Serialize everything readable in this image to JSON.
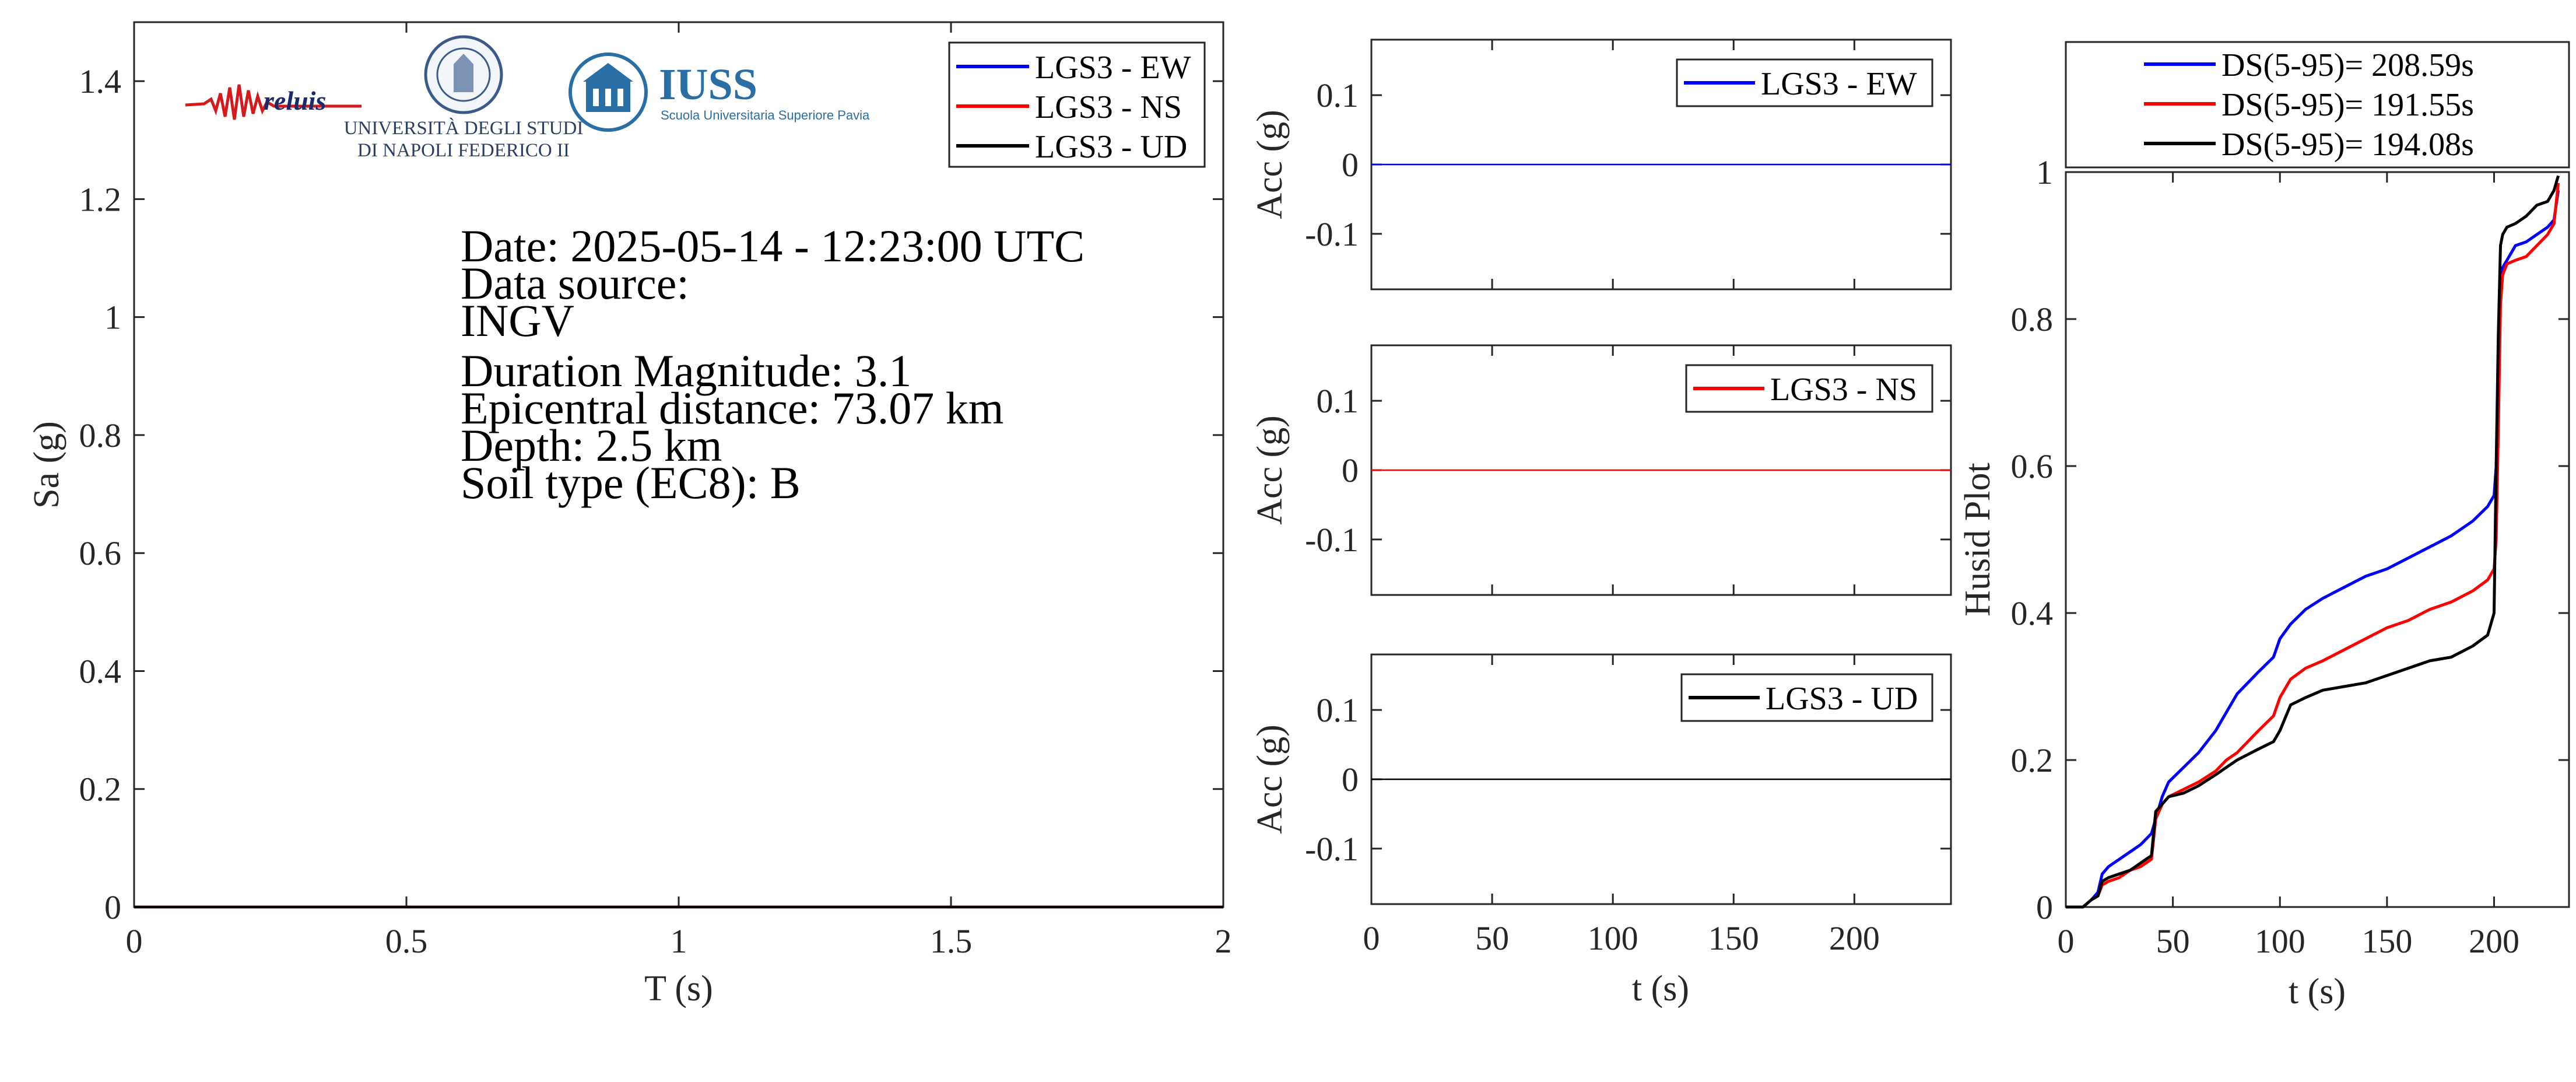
{
  "figure": {
    "logos": {
      "reluis": "reluis",
      "unina_line1": "UNIVERSITÀ DEGLI STUDI",
      "unina_line2": "DI NAPOLI FEDERICO II",
      "iuss_title": "IUSS",
      "iuss_sub": "Scuola Universitaria Superiore Pavia"
    },
    "info": {
      "date": "Date: 2025-05-14 - 12:23:00 UTC",
      "data_source_label": "Data source:",
      "data_source": "INGV",
      "magnitude": "Duration Magnitude: 3.1",
      "epicentral": "Epicentral distance: 73.07 km",
      "depth": "Depth: 2.5 km",
      "soil": "Soil type (EC8): B"
    },
    "colors": {
      "ew": "#0000ff",
      "ns": "#ff0000",
      "ud": "#000000",
      "axis": "#262626"
    }
  },
  "chart_data": [
    {
      "type": "line",
      "xlabel": "T (s)",
      "ylabel": "Sa (g)",
      "xlim": [
        0,
        2
      ],
      "ylim": [
        0,
        1.5
      ],
      "xticks": [
        "0",
        "0.5",
        "1",
        "1.5",
        "2"
      ],
      "yticks": [
        "0",
        "0.2",
        "0.4",
        "0.6",
        "0.8",
        "1",
        "1.2",
        "1.4"
      ],
      "legend_position": "top-right",
      "series": [
        {
          "name": "LGS3 - EW",
          "color": "#0000ff",
          "x": [
            0,
            2
          ],
          "y": [
            0,
            0
          ]
        },
        {
          "name": "LGS3 - NS",
          "color": "#ff0000",
          "x": [
            0,
            2
          ],
          "y": [
            0,
            0
          ]
        },
        {
          "name": "LGS3 - UD",
          "color": "#000000",
          "x": [
            0,
            2
          ],
          "y": [
            0,
            0
          ]
        }
      ]
    },
    {
      "type": "line",
      "xlabel": "",
      "ylabel": "Acc (g)",
      "xlim": [
        0,
        240
      ],
      "ylim": [
        -0.18,
        0.18
      ],
      "yticks": [
        "0.1",
        "0",
        "-0.1"
      ],
      "legend_position": "top-right",
      "series": [
        {
          "name": "LGS3 - EW",
          "color": "#0000ff",
          "x": [
            0,
            240
          ],
          "y": [
            0,
            0
          ]
        }
      ]
    },
    {
      "type": "line",
      "xlabel": "",
      "ylabel": "Acc (g)",
      "xlim": [
        0,
        240
      ],
      "ylim": [
        -0.18,
        0.18
      ],
      "yticks": [
        "0.1",
        "0",
        "-0.1"
      ],
      "legend_position": "top-right",
      "series": [
        {
          "name": "LGS3 - NS",
          "color": "#ff0000",
          "x": [
            0,
            240
          ],
          "y": [
            0,
            0
          ]
        }
      ]
    },
    {
      "type": "line",
      "xlabel": "t (s)",
      "ylabel": "Acc (g)",
      "xlim": [
        0,
        240
      ],
      "ylim": [
        -0.18,
        0.18
      ],
      "xticks": [
        "0",
        "50",
        "100",
        "150",
        "200"
      ],
      "yticks": [
        "0.1",
        "0",
        "-0.1"
      ],
      "legend_position": "top-right",
      "series": [
        {
          "name": "LGS3 - UD",
          "color": "#000000",
          "x": [
            0,
            240
          ],
          "y": [
            0,
            0
          ]
        }
      ]
    },
    {
      "type": "line",
      "xlabel": "t (s)",
      "ylabel": "Husid Plot",
      "xlim": [
        0,
        235
      ],
      "ylim": [
        0,
        1
      ],
      "xticks": [
        "0",
        "50",
        "100",
        "150",
        "200"
      ],
      "yticks": [
        "0",
        "0.2",
        "0.4",
        "0.6",
        "0.8",
        "1"
      ],
      "legend_position": "top-outside",
      "series": [
        {
          "name": "DS(5-95)= 208.59s",
          "color": "#0000ff",
          "x": [
            0,
            8,
            12,
            15,
            17,
            20,
            25,
            30,
            35,
            40,
            42,
            45,
            48,
            55,
            62,
            70,
            75,
            80,
            90,
            97,
            100,
            105,
            112,
            120,
            130,
            140,
            150,
            160,
            170,
            180,
            190,
            197,
            200,
            201,
            202,
            203,
            204,
            206,
            210,
            215,
            220,
            225,
            228,
            230
          ],
          "y": [
            0,
            0,
            0.01,
            0.02,
            0.045,
            0.055,
            0.065,
            0.075,
            0.085,
            0.1,
            0.12,
            0.15,
            0.17,
            0.19,
            0.21,
            0.24,
            0.265,
            0.29,
            0.32,
            0.34,
            0.365,
            0.385,
            0.405,
            0.42,
            0.435,
            0.45,
            0.46,
            0.475,
            0.49,
            0.505,
            0.525,
            0.545,
            0.56,
            0.6,
            0.7,
            0.85,
            0.87,
            0.88,
            0.9,
            0.905,
            0.915,
            0.925,
            0.935,
            0.975
          ]
        },
        {
          "name": "DS(5-95)= 191.55s",
          "color": "#ff0000",
          "x": [
            0,
            8,
            12,
            15,
            17,
            20,
            25,
            30,
            35,
            40,
            42,
            45,
            48,
            55,
            62,
            70,
            75,
            80,
            90,
            97,
            100,
            105,
            112,
            120,
            130,
            140,
            150,
            160,
            170,
            180,
            190,
            197,
            200,
            201,
            202,
            203,
            204,
            206,
            210,
            215,
            220,
            225,
            228,
            230
          ],
          "y": [
            0,
            0,
            0.01,
            0.015,
            0.03,
            0.035,
            0.04,
            0.05,
            0.055,
            0.065,
            0.12,
            0.14,
            0.15,
            0.16,
            0.17,
            0.185,
            0.2,
            0.21,
            0.24,
            0.26,
            0.285,
            0.31,
            0.325,
            0.335,
            0.35,
            0.365,
            0.38,
            0.39,
            0.405,
            0.415,
            0.43,
            0.445,
            0.46,
            0.5,
            0.65,
            0.82,
            0.86,
            0.875,
            0.88,
            0.885,
            0.9,
            0.915,
            0.93,
            0.985
          ]
        },
        {
          "name": "DS(5-95)= 194.08s",
          "color": "#000000",
          "x": [
            0,
            8,
            12,
            15,
            17,
            20,
            25,
            30,
            35,
            40,
            42,
            45,
            48,
            55,
            62,
            70,
            75,
            80,
            90,
            97,
            100,
            105,
            112,
            120,
            130,
            140,
            150,
            160,
            170,
            180,
            190,
            197,
            200,
            201,
            202,
            203,
            204,
            206,
            210,
            215,
            220,
            225,
            228,
            230
          ],
          "y": [
            0,
            0,
            0.01,
            0.015,
            0.035,
            0.04,
            0.045,
            0.05,
            0.06,
            0.07,
            0.13,
            0.14,
            0.15,
            0.155,
            0.165,
            0.18,
            0.19,
            0.2,
            0.215,
            0.225,
            0.24,
            0.275,
            0.285,
            0.295,
            0.3,
            0.305,
            0.315,
            0.325,
            0.335,
            0.34,
            0.355,
            0.37,
            0.4,
            0.6,
            0.78,
            0.9,
            0.915,
            0.925,
            0.93,
            0.94,
            0.955,
            0.96,
            0.975,
            0.995
          ]
        }
      ]
    }
  ]
}
